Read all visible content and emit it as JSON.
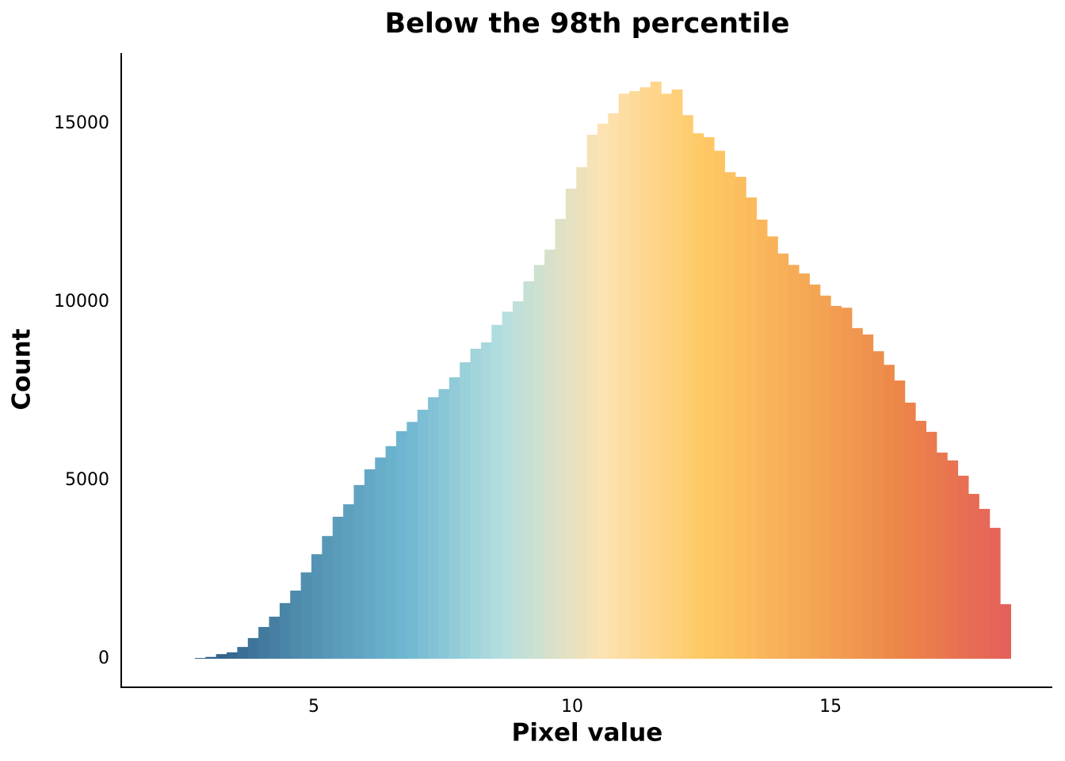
{
  "chart_data": {
    "type": "histogram",
    "title": "Below the 98th percentile",
    "x_label": "Pixel value",
    "y_label": "Count",
    "bins": [
      2.7,
      2.905,
      3.11,
      3.315,
      3.52,
      3.725,
      3.93,
      4.135,
      4.34,
      4.545,
      4.75,
      4.955,
      5.16,
      5.365,
      5.57,
      5.775,
      5.98,
      6.185,
      6.39,
      6.595,
      6.8,
      7.005,
      7.21,
      7.415,
      7.62,
      7.825,
      8.03,
      8.235,
      8.44,
      8.645,
      8.85,
      9.055,
      9.26,
      9.465,
      9.67,
      9.875,
      10.08,
      10.285,
      10.49,
      10.695,
      10.9,
      11.105,
      11.31,
      11.515,
      11.72,
      11.925,
      12.13,
      12.335,
      12.54,
      12.745,
      12.95,
      13.155,
      13.36,
      13.565,
      13.77,
      13.975,
      14.18,
      14.385,
      14.59,
      14.795,
      15.0,
      15.205,
      15.41,
      15.615,
      15.82,
      16.025,
      16.23,
      16.435,
      16.64,
      16.845,
      17.05,
      17.255,
      17.46,
      17.665,
      17.87,
      18.075,
      18.28,
      18.485
    ],
    "values": [
      20,
      50,
      130,
      180,
      330,
      580,
      890,
      1180,
      1560,
      1910,
      2420,
      2930,
      3440,
      3980,
      4330,
      4870,
      5310,
      5640,
      5960,
      6380,
      6640,
      6980,
      7330,
      7560,
      7890,
      8310,
      8690,
      8870,
      9360,
      9730,
      10020,
      10580,
      11040,
      11470,
      12330,
      13180,
      13780,
      14690,
      15000,
      15290,
      15840,
      15910,
      16020,
      16180,
      15840,
      15960,
      15240,
      14730,
      14620,
      14240,
      13640,
      13510,
      12930,
      12310,
      11840,
      11360,
      11040,
      10800,
      10490,
      10180,
      9890,
      9840,
      9270,
      9090,
      8620,
      8240,
      7800,
      7180,
      6670,
      6360,
      5780,
      5560,
      5130,
      4620,
      4200,
      3670,
      1530
    ],
    "colormap": [
      "#2c5985",
      "#4f8dad",
      "#6db5d0",
      "#b3dfdf",
      "#fde2b2",
      "#fec964",
      "#f5a955",
      "#ec8448",
      "#e5605a"
    ],
    "xlim": [
      1.26,
      19.29
    ],
    "ylim": [
      -778,
      16978
    ],
    "xticks": [
      5,
      10,
      15
    ],
    "yticks": [
      0,
      5000,
      10000,
      15000
    ],
    "grid": false
  }
}
